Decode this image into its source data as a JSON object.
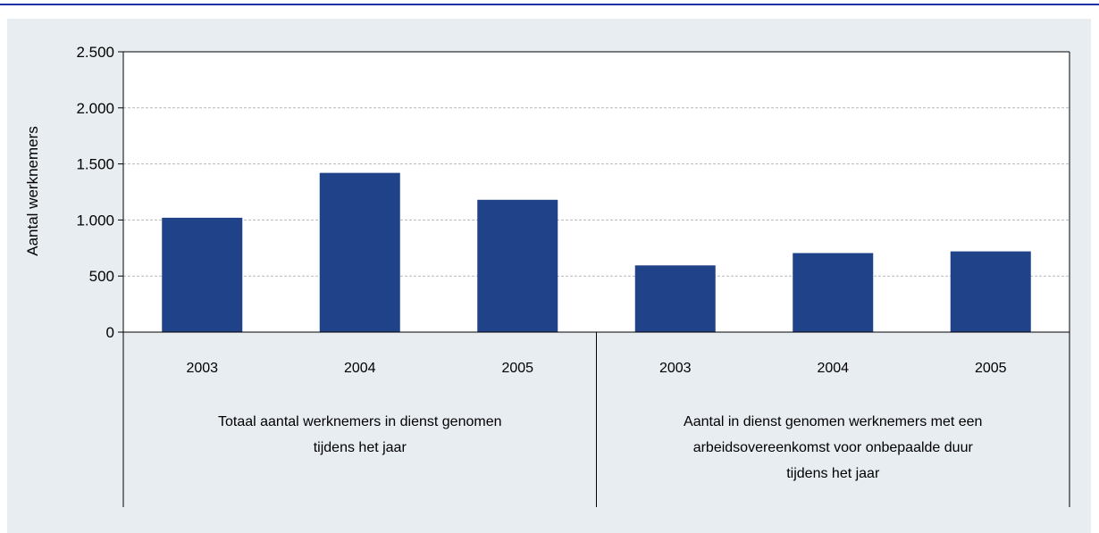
{
  "chart_data": {
    "type": "bar",
    "ylabel": "Aantal werknemers",
    "xlabel": "",
    "ylim": [
      0,
      2500
    ],
    "yticks": [
      0,
      500,
      1000,
      1500,
      2000,
      2500
    ],
    "ytick_labels": [
      "0",
      "500",
      "1.000",
      "1.500",
      "2.000",
      "2.500"
    ],
    "grid": true,
    "legend": "none",
    "bar_color": "#1f4288",
    "groups": [
      {
        "label_lines": [
          "Totaal aantal werknemers in dienst genomen",
          "tijdens het jaar"
        ],
        "categories": [
          "2003",
          "2004",
          "2005"
        ],
        "values": [
          1020,
          1420,
          1180
        ]
      },
      {
        "label_lines": [
          "Aantal in dienst genomen werknemers met een",
          "arbeidsovereenkomst voor onbepaalde duur",
          "tijdens het jaar"
        ],
        "categories": [
          "2003",
          "2004",
          "2005"
        ],
        "values": [
          595,
          705,
          720
        ]
      }
    ]
  }
}
